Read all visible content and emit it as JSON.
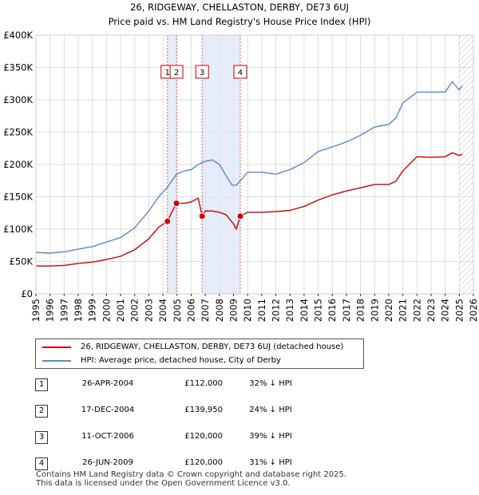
{
  "chart_data": {
    "type": "line",
    "title": "26, RIDGEWAY, CHELLASTON, DERBY, DE73 6UJ",
    "subtitle": "Price paid vs. HM Land Registry's House Price Index (HPI)",
    "xlim": [
      1995,
      2026
    ],
    "ylim": [
      0,
      400000
    ],
    "x_ticks": [
      1995,
      1996,
      1997,
      1998,
      1999,
      2000,
      2001,
      2002,
      2003,
      2004,
      2005,
      2006,
      2007,
      2008,
      2009,
      2010,
      2011,
      2012,
      2013,
      2014,
      2015,
      2016,
      2017,
      2018,
      2019,
      2020,
      2021,
      2022,
      2023,
      2024,
      2025,
      2026
    ],
    "y_ticks": [
      0,
      50000,
      100000,
      150000,
      200000,
      250000,
      300000,
      350000,
      400000
    ],
    "y_tick_labels": [
      "£0",
      "£50K",
      "£100K",
      "£150K",
      "£200K",
      "£250K",
      "£300K",
      "£350K",
      "£400K"
    ],
    "grid": true,
    "legend_position": "below",
    "hatched_future_from": 2025.0,
    "shaded_periods": [
      [
        2004.32,
        2004.96
      ],
      [
        2006.78,
        2009.48
      ]
    ],
    "series": [
      {
        "name": "26, RIDGEWAY, CHELLASTON, DERBY, DE73 6UJ (detached house)",
        "color": "#cc0000",
        "x": [
          1995.0,
          1996.0,
          1997.0,
          1998.0,
          1999.0,
          2000.0,
          2001.0,
          2002.0,
          2003.0,
          2003.7,
          2004.32,
          2004.6,
          2004.96,
          2005.5,
          2006.0,
          2006.5,
          2006.78,
          2007.0,
          2007.5,
          2008.0,
          2008.5,
          2009.0,
          2009.2,
          2009.48,
          2010.0,
          2011.0,
          2012.0,
          2013.0,
          2014.0,
          2015.0,
          2016.0,
          2017.0,
          2018.0,
          2019.0,
          2020.0,
          2020.5,
          2021.0,
          2022.0,
          2023.0,
          2024.0,
          2024.5,
          2025.0,
          2025.2
        ],
        "y": [
          43000,
          43000,
          44000,
          47000,
          49000,
          53000,
          58000,
          68000,
          85000,
          103000,
          112000,
          125000,
          139950,
          140000,
          142000,
          148000,
          120000,
          128000,
          128000,
          126000,
          122000,
          108000,
          100000,
          120000,
          126000,
          126000,
          127000,
          129000,
          135000,
          145000,
          153000,
          159000,
          164000,
          169000,
          169000,
          174000,
          190000,
          212000,
          211000,
          212000,
          218000,
          214000,
          216000
        ]
      },
      {
        "name": "HPI: Average price, detached house, City of Derby",
        "color": "#5b8ac4",
        "x": [
          1995.0,
          1996.0,
          1997.0,
          1998.0,
          1999.0,
          2000.0,
          2001.0,
          2002.0,
          2003.0,
          2003.7,
          2004.32,
          2004.96,
          2005.5,
          2006.0,
          2006.5,
          2007.0,
          2007.5,
          2008.0,
          2008.5,
          2008.9,
          2009.2,
          2009.48,
          2010.0,
          2011.0,
          2012.0,
          2013.0,
          2014.0,
          2015.0,
          2016.0,
          2017.0,
          2018.0,
          2019.0,
          2020.0,
          2020.5,
          2021.0,
          2022.0,
          2023.0,
          2024.0,
          2024.5,
          2025.0,
          2025.2
        ],
        "y": [
          64000,
          63000,
          65000,
          69000,
          73000,
          80000,
          87000,
          102000,
          128000,
          150000,
          165000,
          185000,
          190000,
          192000,
          200000,
          205000,
          207000,
          200000,
          182000,
          168000,
          168000,
          175000,
          188000,
          188000,
          185000,
          192000,
          203000,
          220000,
          227000,
          235000,
          245000,
          258000,
          262000,
          272000,
          295000,
          312000,
          312000,
          312000,
          328000,
          315000,
          322000
        ]
      }
    ],
    "markers": [
      {
        "label": "1",
        "x": 2004.32,
        "y": 112000
      },
      {
        "label": "2",
        "x": 2004.96,
        "y": 139950
      },
      {
        "label": "3",
        "x": 2006.78,
        "y": 120000
      },
      {
        "label": "4",
        "x": 2009.48,
        "y": 120000
      }
    ]
  },
  "legend": [
    {
      "label": "26, RIDGEWAY, CHELLASTON, DERBY, DE73 6UJ (detached house)",
      "color": "#cc0000"
    },
    {
      "label": "HPI: Average price, detached house, City of Derby",
      "color": "#5b8ac4"
    }
  ],
  "transactions": [
    {
      "num": "1",
      "date": "26-APR-2004",
      "price": "£112,000",
      "hpi": "32% ↓ HPI"
    },
    {
      "num": "2",
      "date": "17-DEC-2004",
      "price": "£139,950",
      "hpi": "24% ↓ HPI"
    },
    {
      "num": "3",
      "date": "11-OCT-2006",
      "price": "£120,000",
      "hpi": "39% ↓ HPI"
    },
    {
      "num": "4",
      "date": "26-JUN-2009",
      "price": "£120,000",
      "hpi": "31% ↓ HPI"
    }
  ],
  "footer": {
    "line1": "Contains HM Land Registry data © Crown copyright and database right 2025.",
    "line2": "This data is licensed under the Open Government Licence v3.0."
  }
}
